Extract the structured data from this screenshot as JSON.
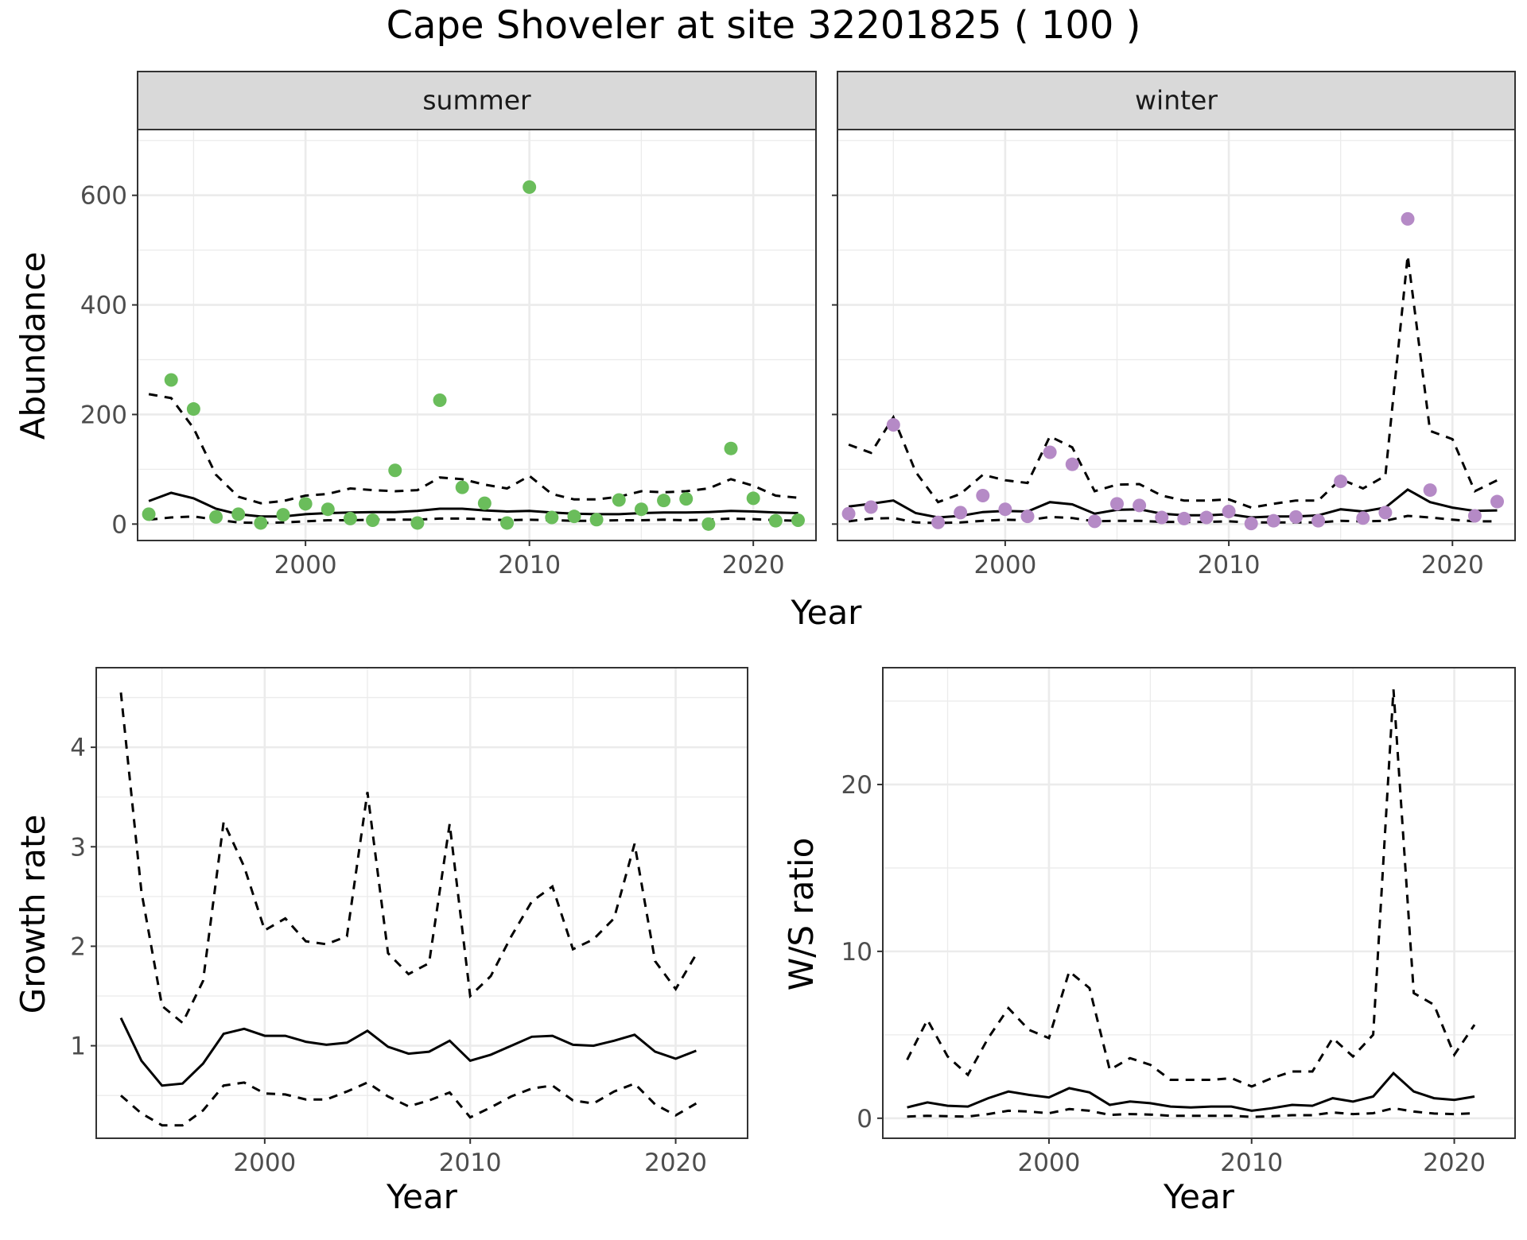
{
  "figure_title": "Cape Shoveler at site 32201825 ( 100 )",
  "colors": {
    "summer_points": "#6abd5b",
    "winter_points": "#b58ac6",
    "lines": "#000000",
    "strip_fill": "#d9d9d9",
    "grid": "#ebebeb"
  },
  "chart_data": [
    {
      "type": "scatter",
      "panel": "summer",
      "strip_label": "summer",
      "xlabel": "Year",
      "ylabel": "Abundance",
      "xlim": [
        1992.5,
        2022.8
      ],
      "ylim": [
        -30,
        720
      ],
      "xticks": [
        2000,
        2010,
        2020
      ],
      "yticks": [
        0,
        200,
        400,
        600
      ],
      "grid": true,
      "points": {
        "x": [
          1993,
          1994,
          1995,
          1996,
          1997,
          1998,
          1999,
          2000,
          2001,
          2002,
          2003,
          2004,
          2005,
          2006,
          2007,
          2008,
          2009,
          2010,
          2011,
          2012,
          2013,
          2014,
          2015,
          2016,
          2017,
          2018,
          2019,
          2020,
          2021,
          2022
        ],
        "y": [
          18,
          263,
          210,
          13,
          18,
          2,
          17,
          37,
          27,
          10,
          7,
          98,
          2,
          226,
          67,
          38,
          2,
          615,
          12,
          14,
          8,
          44,
          27,
          43,
          46,
          0,
          138,
          47,
          6,
          7
        ]
      },
      "series": [
        {
          "style": "solid",
          "x": [
            1993,
            1994,
            1995,
            1996,
            1997,
            1998,
            1999,
            2000,
            2001,
            2002,
            2003,
            2004,
            2005,
            2006,
            2007,
            2008,
            2009,
            2010,
            2011,
            2012,
            2013,
            2014,
            2015,
            2016,
            2017,
            2018,
            2019,
            2020,
            2021,
            2022
          ],
          "values": [
            42,
            57,
            47,
            28,
            18,
            14,
            14,
            18,
            20,
            21,
            22,
            22,
            24,
            28,
            28,
            25,
            23,
            24,
            21,
            19,
            18,
            18,
            20,
            21,
            21,
            22,
            24,
            23,
            21,
            20
          ]
        },
        {
          "style": "dashed",
          "x": [
            1993,
            1994,
            1995,
            1996,
            1997,
            1998,
            1999,
            2000,
            2001,
            2002,
            2003,
            2004,
            2005,
            2006,
            2007,
            2008,
            2009,
            2010,
            2011,
            2012,
            2013,
            2014,
            2015,
            2016,
            2017,
            2018,
            2019,
            2020,
            2021,
            2022
          ],
          "values": [
            237,
            230,
            175,
            90,
            50,
            38,
            42,
            52,
            55,
            65,
            62,
            60,
            62,
            85,
            82,
            72,
            65,
            88,
            55,
            45,
            45,
            50,
            60,
            58,
            60,
            65,
            82,
            70,
            52,
            48
          ]
        },
        {
          "style": "dashed",
          "x": [
            1993,
            1994,
            1995,
            1996,
            1997,
            1998,
            1999,
            2000,
            2001,
            2002,
            2003,
            2004,
            2005,
            2006,
            2007,
            2008,
            2009,
            2010,
            2011,
            2012,
            2013,
            2014,
            2015,
            2016,
            2017,
            2018,
            2019,
            2020,
            2021,
            2022
          ],
          "values": [
            8,
            12,
            14,
            8,
            3,
            2,
            3,
            5,
            7,
            7,
            8,
            8,
            8,
            10,
            10,
            9,
            7,
            8,
            7,
            6,
            6,
            7,
            7,
            8,
            7,
            8,
            10,
            9,
            7,
            6
          ]
        }
      ]
    },
    {
      "type": "scatter",
      "panel": "winter",
      "strip_label": "winter",
      "xlabel": "Year",
      "ylabel": "Abundance",
      "xlim": [
        1992.5,
        2022.8
      ],
      "ylim": [
        -30,
        720
      ],
      "xticks": [
        2000,
        2010,
        2020
      ],
      "yticks": [
        0,
        200,
        400,
        600
      ],
      "grid": true,
      "points": {
        "x": [
          1993,
          1994,
          1995,
          1997,
          1998,
          1999,
          2000,
          2001,
          2002,
          2003,
          2004,
          2005,
          2006,
          2007,
          2008,
          2009,
          2010,
          2011,
          2012,
          2013,
          2014,
          2015,
          2016,
          2017,
          2018,
          2019,
          2021,
          2022
        ],
        "y": [
          19,
          31,
          181,
          3,
          21,
          52,
          27,
          14,
          131,
          109,
          5,
          37,
          34,
          12,
          10,
          12,
          23,
          1,
          6,
          13,
          6,
          78,
          11,
          21,
          557,
          62,
          15,
          41
        ]
      },
      "series": [
        {
          "style": "solid",
          "x": [
            1993,
            1994,
            1995,
            1996,
            1997,
            1998,
            1999,
            2000,
            2001,
            2002,
            2003,
            2004,
            2005,
            2006,
            2007,
            2008,
            2009,
            2010,
            2011,
            2012,
            2013,
            2014,
            2015,
            2016,
            2017,
            2018,
            2019,
            2020,
            2021,
            2022
          ],
          "values": [
            32,
            37,
            43,
            20,
            12,
            15,
            22,
            24,
            23,
            40,
            36,
            19,
            26,
            27,
            19,
            16,
            16,
            18,
            12,
            14,
            14,
            16,
            27,
            23,
            30,
            63,
            40,
            30,
            24,
            25
          ]
        },
        {
          "style": "dashed",
          "x": [
            1993,
            1994,
            1995,
            1996,
            1997,
            1998,
            1999,
            2000,
            2001,
            2002,
            2003,
            2004,
            2005,
            2006,
            2007,
            2008,
            2009,
            2010,
            2011,
            2012,
            2013,
            2014,
            2015,
            2016,
            2017,
            2018,
            2019,
            2020,
            2021,
            2022
          ],
          "values": [
            145,
            130,
            195,
            95,
            40,
            55,
            90,
            80,
            75,
            160,
            140,
            60,
            72,
            73,
            52,
            43,
            43,
            45,
            30,
            37,
            43,
            43,
            82,
            65,
            88,
            490,
            170,
            155,
            60,
            80
          ]
        },
        {
          "style": "dashed",
          "x": [
            1993,
            1994,
            1995,
            1996,
            1997,
            1998,
            1999,
            2000,
            2001,
            2002,
            2003,
            2004,
            2005,
            2006,
            2007,
            2008,
            2009,
            2010,
            2011,
            2012,
            2013,
            2014,
            2015,
            2016,
            2017,
            2018,
            2019,
            2020,
            2021,
            2022
          ],
          "values": [
            5,
            10,
            11,
            3,
            2,
            3,
            6,
            8,
            7,
            13,
            11,
            5,
            6,
            6,
            4,
            4,
            4,
            5,
            3,
            3,
            3,
            3,
            6,
            5,
            6,
            15,
            12,
            8,
            5,
            5
          ]
        }
      ]
    },
    {
      "type": "line",
      "panel": "growth",
      "xlabel": "Year",
      "ylabel": "Growth rate",
      "xlim": [
        1991.8,
        2023.5
      ],
      "ylim": [
        0.07,
        4.8
      ],
      "xticks": [
        2000,
        2010,
        2020
      ],
      "yticks": [
        1,
        2,
        3,
        4
      ],
      "grid": true,
      "series": [
        {
          "style": "solid",
          "x": [
            1993,
            1994,
            1995,
            1996,
            1997,
            1998,
            1999,
            2000,
            2001,
            2002,
            2003,
            2004,
            2005,
            2006,
            2007,
            2008,
            2009,
            2010,
            2011,
            2012,
            2013,
            2014,
            2015,
            2016,
            2017,
            2018,
            2019,
            2020,
            2021
          ],
          "values": [
            1.28,
            0.85,
            0.6,
            0.62,
            0.82,
            1.12,
            1.17,
            1.1,
            1.1,
            1.04,
            1.01,
            1.03,
            1.15,
            0.99,
            0.92,
            0.94,
            1.05,
            0.85,
            0.91,
            1.0,
            1.09,
            1.1,
            1.01,
            1.0,
            1.05,
            1.11,
            0.94,
            0.87,
            0.95
          ]
        },
        {
          "style": "dashed",
          "x": [
            1993,
            1994,
            1995,
            1996,
            1997,
            1998,
            1999,
            2000,
            2001,
            2002,
            2003,
            2004,
            2005,
            2006,
            2007,
            2008,
            2009,
            2010,
            2011,
            2012,
            2013,
            2014,
            2015,
            2016,
            2017,
            2018,
            2019,
            2020,
            2021
          ],
          "values": [
            4.55,
            2.55,
            1.4,
            1.23,
            1.65,
            3.25,
            2.8,
            2.16,
            2.28,
            2.05,
            2.02,
            2.1,
            3.55,
            1.93,
            1.72,
            1.83,
            3.23,
            1.5,
            1.7,
            2.1,
            2.45,
            2.6,
            1.97,
            2.07,
            2.28,
            3.03,
            1.85,
            1.57,
            1.92
          ]
        },
        {
          "style": "dashed",
          "x": [
            1993,
            1994,
            1995,
            1996,
            1997,
            1998,
            1999,
            2000,
            2001,
            2002,
            2003,
            2004,
            2005,
            2006,
            2007,
            2008,
            2009,
            2010,
            2011,
            2012,
            2013,
            2014,
            2015,
            2016,
            2017,
            2018,
            2019,
            2020,
            2021
          ],
          "values": [
            0.5,
            0.32,
            0.2,
            0.2,
            0.35,
            0.6,
            0.63,
            0.52,
            0.51,
            0.46,
            0.46,
            0.54,
            0.63,
            0.49,
            0.39,
            0.45,
            0.53,
            0.28,
            0.38,
            0.49,
            0.57,
            0.6,
            0.45,
            0.42,
            0.54,
            0.62,
            0.41,
            0.3,
            0.42
          ]
        }
      ]
    },
    {
      "type": "line",
      "panel": "ratio",
      "xlabel": "Year",
      "ylabel": "W/S ratio",
      "xlim": [
        1991.8,
        2023.0
      ],
      "ylim": [
        -1.2,
        27.0
      ],
      "xticks": [
        2000,
        2010,
        2020
      ],
      "yticks": [
        0,
        10,
        20
      ],
      "grid": true,
      "series": [
        {
          "style": "solid",
          "x": [
            1993,
            1994,
            1995,
            1996,
            1997,
            1998,
            1999,
            2000,
            2001,
            2002,
            2003,
            2004,
            2005,
            2006,
            2007,
            2008,
            2009,
            2010,
            2011,
            2012,
            2013,
            2014,
            2015,
            2016,
            2017,
            2018,
            2019,
            2020,
            2021
          ],
          "values": [
            0.65,
            0.95,
            0.75,
            0.7,
            1.2,
            1.6,
            1.4,
            1.25,
            1.8,
            1.55,
            0.8,
            1.0,
            0.9,
            0.7,
            0.65,
            0.7,
            0.7,
            0.45,
            0.6,
            0.8,
            0.75,
            1.2,
            1.0,
            1.3,
            2.7,
            1.6,
            1.2,
            1.1,
            1.3
          ]
        },
        {
          "style": "dashed",
          "x": [
            1993,
            1994,
            1995,
            1996,
            1997,
            1998,
            1999,
            2000,
            2001,
            2002,
            2003,
            2004,
            2005,
            2006,
            2007,
            2008,
            2009,
            2010,
            2011,
            2012,
            2013,
            2014,
            2015,
            2016,
            2017,
            2018,
            2019,
            2020,
            2021
          ],
          "values": [
            3.5,
            5.9,
            3.7,
            2.6,
            4.8,
            6.6,
            5.3,
            4.8,
            8.8,
            7.8,
            2.9,
            3.6,
            3.2,
            2.3,
            2.3,
            2.3,
            2.4,
            1.9,
            2.4,
            2.8,
            2.8,
            4.8,
            3.7,
            5.0,
            25.7,
            7.5,
            6.8,
            3.8,
            5.6
          ]
        },
        {
          "style": "dashed",
          "x": [
            1993,
            1994,
            1995,
            1996,
            1997,
            1998,
            1999,
            2000,
            2001,
            2002,
            2003,
            2004,
            2005,
            2006,
            2007,
            2008,
            2009,
            2010,
            2011,
            2012,
            2013,
            2014,
            2015,
            2016,
            2017,
            2018,
            2019,
            2020,
            2021
          ],
          "values": [
            0.1,
            0.15,
            0.12,
            0.1,
            0.25,
            0.45,
            0.4,
            0.3,
            0.55,
            0.45,
            0.2,
            0.25,
            0.22,
            0.15,
            0.15,
            0.15,
            0.15,
            0.08,
            0.12,
            0.18,
            0.18,
            0.35,
            0.25,
            0.3,
            0.6,
            0.4,
            0.28,
            0.25,
            0.3
          ]
        }
      ]
    }
  ]
}
